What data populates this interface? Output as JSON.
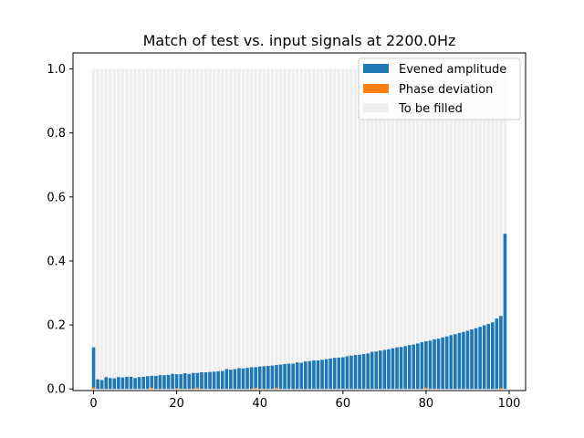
{
  "chart_data": {
    "type": "bar",
    "title": "Match of test vs. input signals at 2200.0Hz",
    "xlabel": "",
    "ylabel": "",
    "xlim": [
      -4.95,
      103.95
    ],
    "ylim": [
      -0.005,
      1.05
    ],
    "xticks": [
      0,
      20,
      40,
      60,
      80,
      100
    ],
    "yticks": [
      0.0,
      0.2,
      0.4,
      0.6,
      0.8,
      1.0
    ],
    "xtick_labels": [
      "0",
      "20",
      "40",
      "60",
      "80",
      "100"
    ],
    "ytick_labels": [
      "0.0",
      "0.2",
      "0.4",
      "0.6",
      "0.8",
      "1.0"
    ],
    "bar_width": 0.8,
    "legend_position": "upper right",
    "grid": false,
    "x": [
      0,
      1,
      2,
      3,
      4,
      5,
      6,
      7,
      8,
      9,
      10,
      11,
      12,
      13,
      14,
      15,
      16,
      17,
      18,
      19,
      20,
      21,
      22,
      23,
      24,
      25,
      26,
      27,
      28,
      29,
      30,
      31,
      32,
      33,
      34,
      35,
      36,
      37,
      38,
      39,
      40,
      41,
      42,
      43,
      44,
      45,
      46,
      47,
      48,
      49,
      50,
      51,
      52,
      53,
      54,
      55,
      56,
      57,
      58,
      59,
      60,
      61,
      62,
      63,
      64,
      65,
      66,
      67,
      68,
      69,
      70,
      71,
      72,
      73,
      74,
      75,
      76,
      77,
      78,
      79,
      80,
      81,
      82,
      83,
      84,
      85,
      86,
      87,
      88,
      89,
      90,
      91,
      92,
      93,
      94,
      95,
      96,
      97,
      98,
      99
    ],
    "series": [
      {
        "name": "Evened amplitude",
        "color": "#1f77b4",
        "values": [
          0.13,
          0.03,
          0.028,
          0.037,
          0.034,
          0.033,
          0.037,
          0.036,
          0.038,
          0.038,
          0.034,
          0.037,
          0.038,
          0.04,
          0.041,
          0.041,
          0.043,
          0.043,
          0.044,
          0.047,
          0.046,
          0.046,
          0.049,
          0.047,
          0.05,
          0.05,
          0.052,
          0.052,
          0.053,
          0.054,
          0.055,
          0.056,
          0.062,
          0.06,
          0.062,
          0.065,
          0.064,
          0.066,
          0.068,
          0.068,
          0.07,
          0.071,
          0.072,
          0.073,
          0.075,
          0.076,
          0.078,
          0.079,
          0.079,
          0.083,
          0.082,
          0.086,
          0.087,
          0.089,
          0.089,
          0.091,
          0.093,
          0.095,
          0.097,
          0.098,
          0.099,
          0.102,
          0.104,
          0.106,
          0.107,
          0.109,
          0.111,
          0.116,
          0.117,
          0.12,
          0.122,
          0.124,
          0.127,
          0.13,
          0.131,
          0.134,
          0.137,
          0.139,
          0.142,
          0.146,
          0.149,
          0.151,
          0.155,
          0.157,
          0.161,
          0.164,
          0.168,
          0.171,
          0.175,
          0.178,
          0.182,
          0.186,
          0.19,
          0.194,
          0.199,
          0.203,
          0.208,
          0.22,
          0.228,
          0.485
        ]
      },
      {
        "name": "Phase deviation",
        "color": "#ff7f0e",
        "values": [
          0.005,
          0,
          0,
          0,
          0,
          0,
          0,
          0,
          0,
          0,
          0,
          0,
          0,
          0,
          0.004,
          0,
          0,
          0,
          0,
          0,
          0.003,
          0,
          0,
          0,
          0,
          0.004,
          0,
          0,
          0,
          0,
          0,
          0,
          0,
          0,
          0,
          0,
          0,
          0,
          0,
          0.004,
          0,
          0,
          0,
          0,
          0.004,
          0,
          0,
          0,
          0,
          0,
          0,
          0,
          0,
          0,
          0,
          0,
          0,
          0,
          0,
          0,
          0,
          0,
          0,
          0,
          0,
          0,
          0,
          0,
          0,
          0,
          0,
          0,
          0,
          0,
          0,
          0,
          0,
          0,
          0,
          0,
          0.004,
          0,
          0,
          0,
          0,
          0,
          0,
          0,
          0,
          0,
          0,
          0,
          0,
          0,
          0,
          0,
          0,
          0,
          0.003,
          0
        ]
      },
      {
        "name": "To be filled",
        "color": "#eeeeee",
        "values": [
          1,
          1,
          1,
          1,
          1,
          1,
          1,
          1,
          1,
          1,
          1,
          1,
          1,
          1,
          1,
          1,
          1,
          1,
          1,
          1,
          1,
          1,
          1,
          1,
          1,
          1,
          1,
          1,
          1,
          1,
          1,
          1,
          1,
          1,
          1,
          1,
          1,
          1,
          1,
          1,
          1,
          1,
          1,
          1,
          1,
          1,
          1,
          1,
          1,
          1,
          1,
          1,
          1,
          1,
          1,
          1,
          1,
          1,
          1,
          1,
          1,
          1,
          1,
          1,
          1,
          1,
          1,
          1,
          1,
          1,
          1,
          1,
          1,
          1,
          1,
          1,
          1,
          1,
          1,
          1,
          1,
          1,
          1,
          1,
          1,
          1,
          1,
          1,
          1,
          1,
          1,
          1,
          1,
          1,
          1,
          1,
          1,
          1,
          1,
          1
        ]
      }
    ]
  }
}
